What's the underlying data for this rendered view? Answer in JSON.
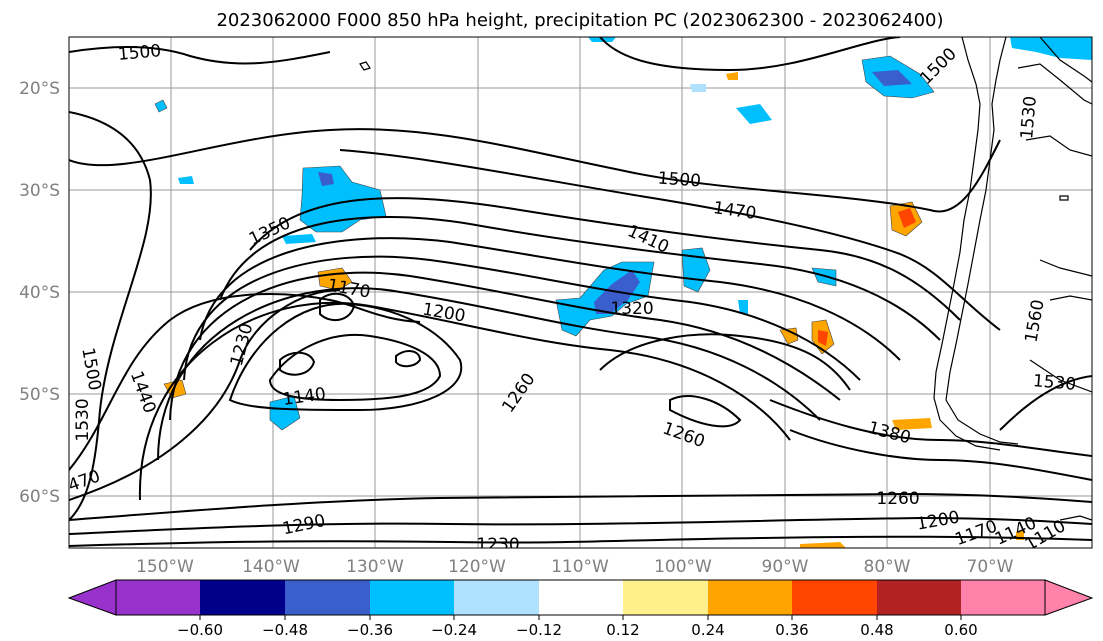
{
  "title": "2023062000 F000 850 hPa height, precipitation PC (2023062300 - 2023062400)",
  "map": {
    "lon_labels": [
      "150°W",
      "140°W",
      "130°W",
      "120°W",
      "110°W",
      "100°W",
      "90°W",
      "80°W",
      "70°W"
    ],
    "lat_labels": [
      "20°S",
      "30°S",
      "40°S",
      "50°S",
      "60°S"
    ],
    "contour_labels": [
      {
        "text": "1500",
        "rot": -5
      },
      {
        "text": "1500",
        "rot": 4
      },
      {
        "text": "1470",
        "rot": 8
      },
      {
        "text": "1410",
        "rot": 25
      },
      {
        "text": "1350",
        "rot": -25
      },
      {
        "text": "1170",
        "rot": 10
      },
      {
        "text": "1200",
        "rot": 10
      },
      {
        "text": "1320",
        "rot": 0
      },
      {
        "text": "1230",
        "rot": -75
      },
      {
        "text": "1140",
        "rot": -8
      },
      {
        "text": "1260",
        "rot": -55
      },
      {
        "text": "1260",
        "rot": 20
      },
      {
        "text": "1500",
        "rot": 80
      },
      {
        "text": "1440",
        "rot": 70
      },
      {
        "text": "1530",
        "rot": -90
      },
      {
        "text": "470",
        "rot": -20
      },
      {
        "text": "1290",
        "rot": -12
      },
      {
        "text": "1230",
        "rot": 0
      },
      {
        "text": "1260",
        "rot": 0
      },
      {
        "text": "1200",
        "rot": -10
      },
      {
        "text": "1170",
        "rot": -20
      },
      {
        "text": "1140",
        "rot": -25
      },
      {
        "text": "1110",
        "rot": -30
      },
      {
        "text": "1380",
        "rot": 15
      },
      {
        "text": "1530",
        "rot": 5
      },
      {
        "text": "1560",
        "rot": -80
      },
      {
        "text": "1530",
        "rot": -85
      },
      {
        "text": "1500",
        "rot": -45
      }
    ]
  },
  "colorbar": {
    "tick_labels": [
      "−0.60",
      "−0.48",
      "−0.36",
      "−0.24",
      "−0.12",
      "0.12",
      "0.24",
      "0.36",
      "0.48",
      "0.60"
    ],
    "colors": [
      "#9932cc",
      "#00008b",
      "#3a5fcd",
      "#00bfff",
      "#b0e2ff",
      "#ffffff",
      "#fff08c",
      "#ffa500",
      "#ff4500",
      "#b22222",
      "#ff82ab"
    ],
    "levels": [
      -0.6,
      -0.48,
      -0.36,
      -0.24,
      -0.12,
      0.12,
      0.24,
      0.36,
      0.48,
      0.6
    ]
  }
}
